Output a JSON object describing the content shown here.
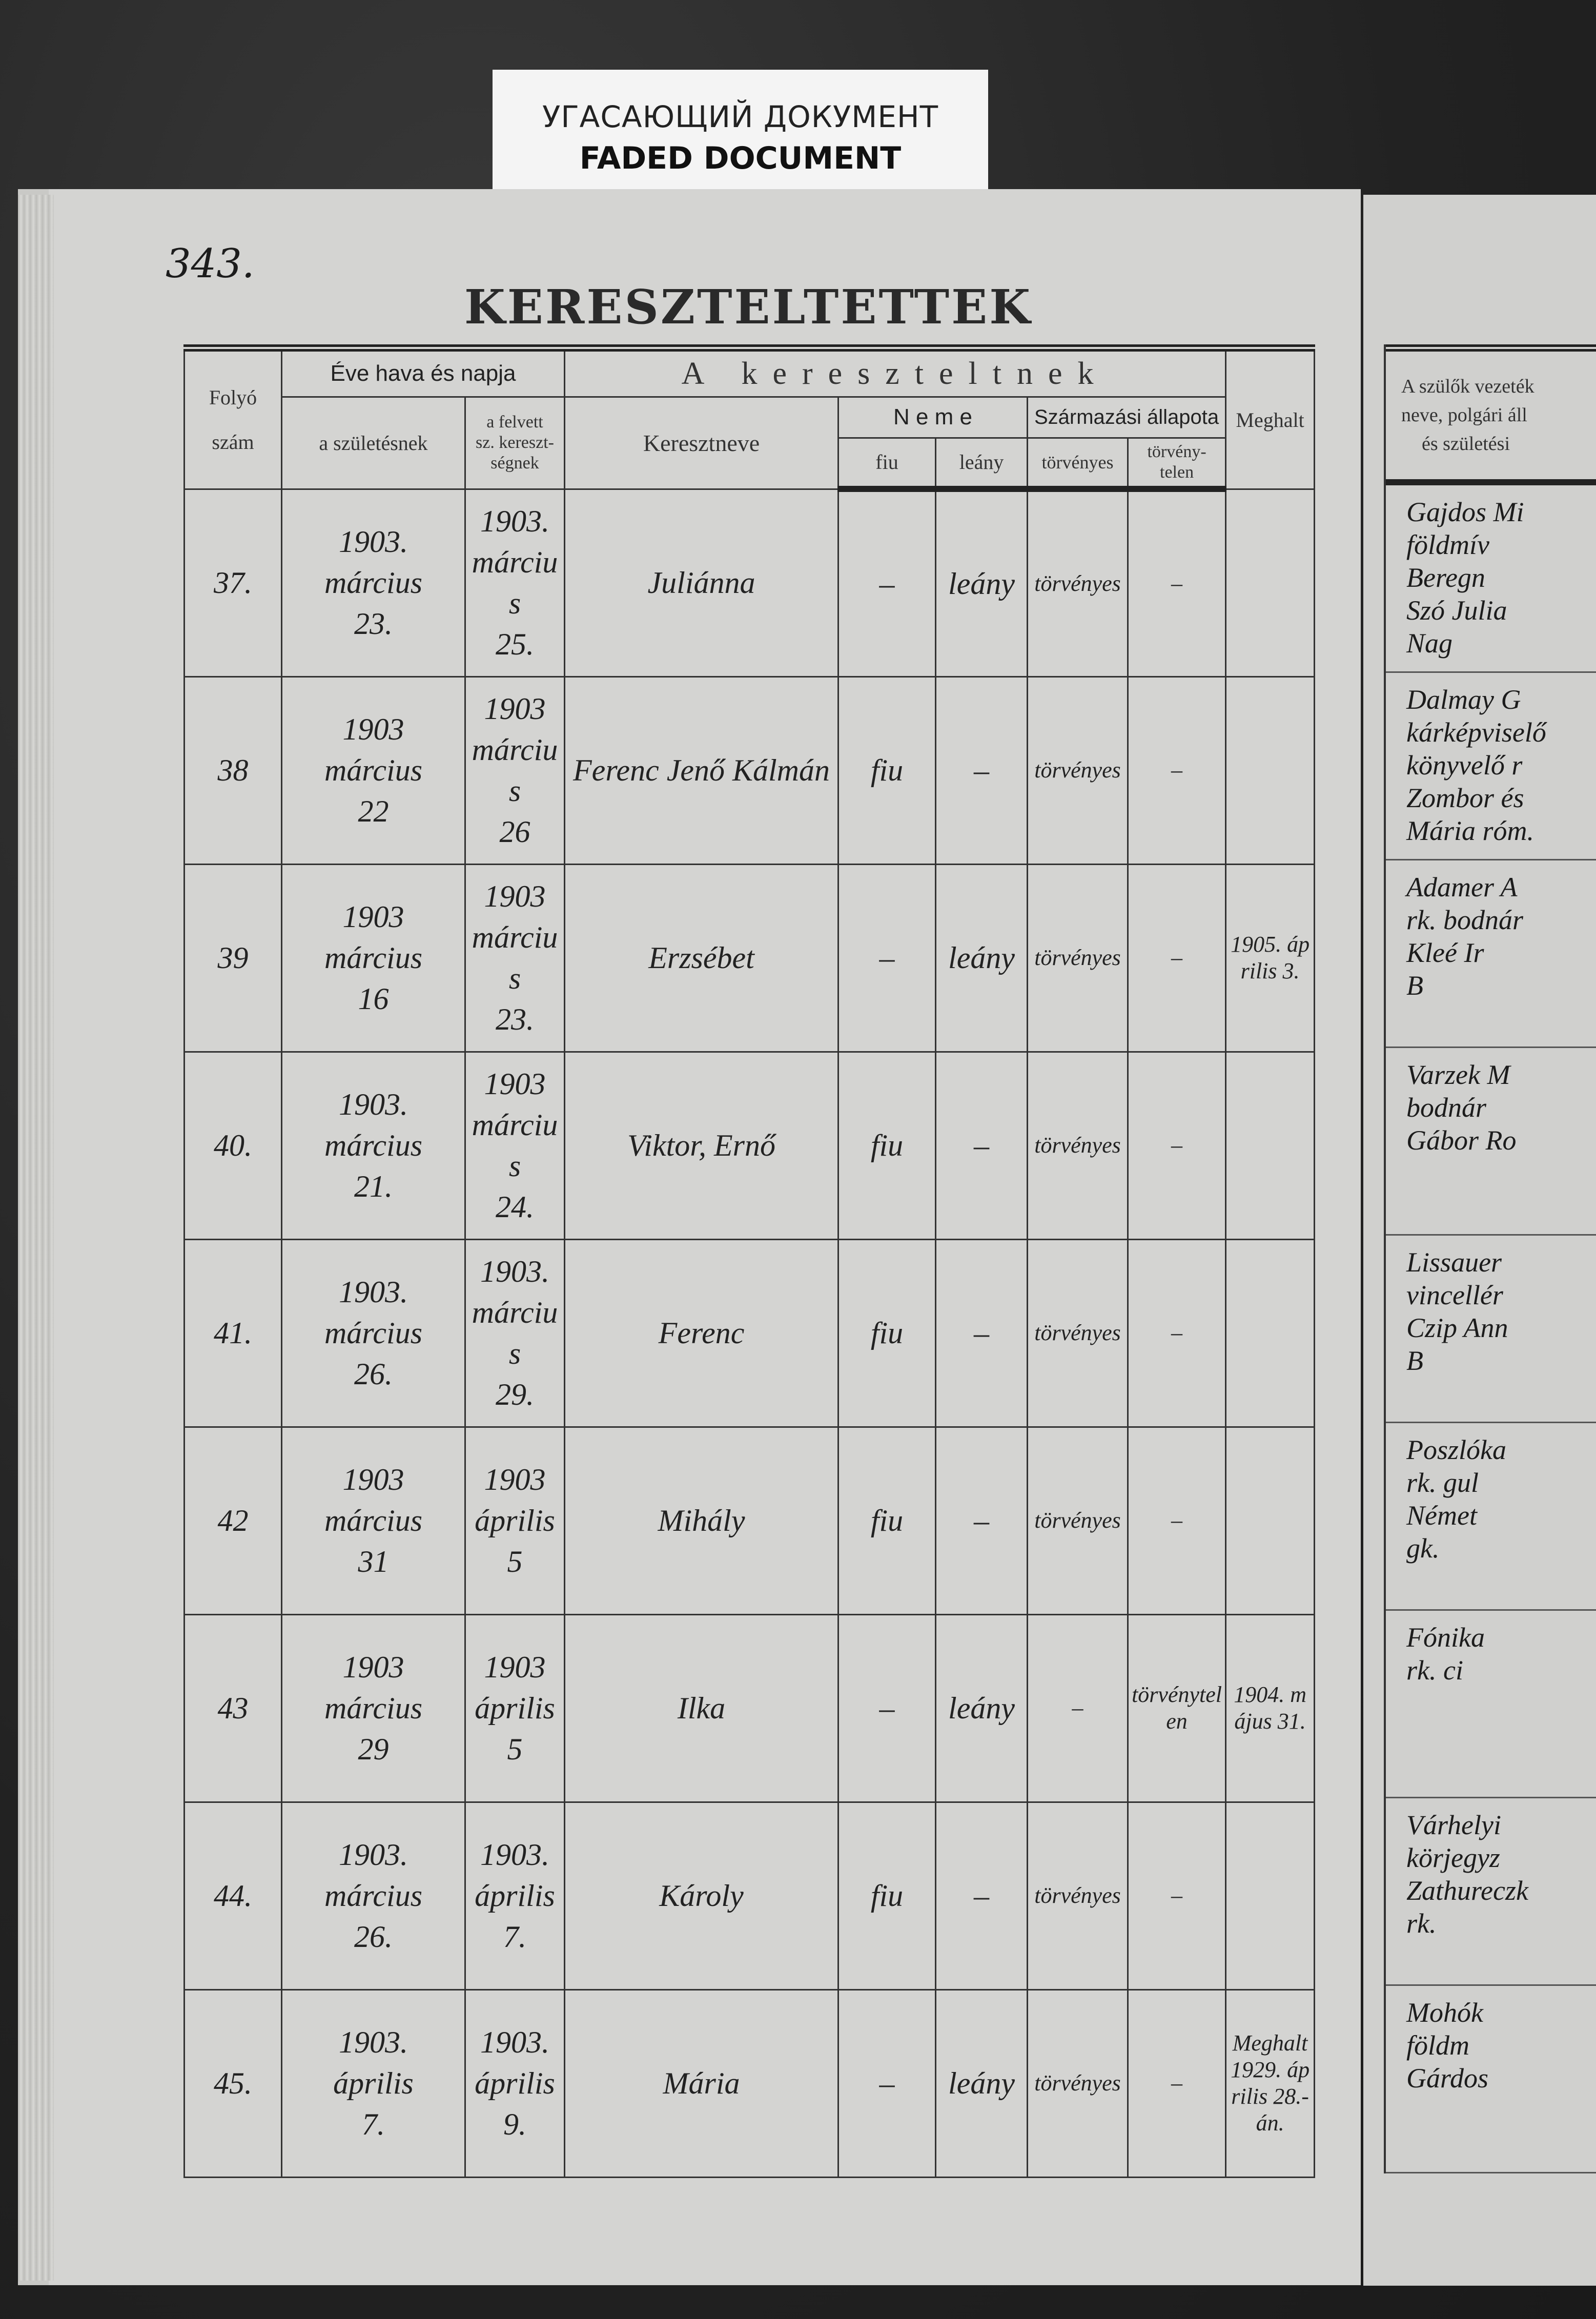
{
  "label": {
    "russian": "УГАСАЮЩИЙ ДОКУМЕНТ",
    "english": "FADED DOCUMENT"
  },
  "page_number": "343.",
  "title": "KERESZTELTETTEK",
  "headers": {
    "folyo_szam": [
      "Folyó",
      "szám"
    ],
    "eve_hava_napja": "Éve hava és napja",
    "szuletesnek": "a születésnek",
    "keresztsegnek": [
      "a felvett",
      "sz. kereszt-",
      "ségnek"
    ],
    "a_kereszteltnek": "A kereszteltnek",
    "keresztneve": "Keresztneve",
    "neme": "N e m e",
    "fiu": "fiu",
    "leany": "leány",
    "szarmazasi": "Származási állapota",
    "torvenyes": "törvényes",
    "torvenytelen": [
      "törvény-",
      "telen"
    ],
    "meghalt": "Meghalt"
  },
  "rows": [
    {
      "num": "37.",
      "birth": [
        "1903.",
        "március",
        "23."
      ],
      "baptism": [
        "1903.",
        "március",
        "25."
      ],
      "name": "Juliánna",
      "fiu": "–",
      "leany": "leány",
      "torvenyes": "törvényes",
      "torvenytelen": "–",
      "meghalt": ""
    },
    {
      "num": "38",
      "birth": [
        "1903",
        "március",
        "22"
      ],
      "baptism": [
        "1903",
        "március",
        "26"
      ],
      "name": "Ferenc Jenő Kálmán",
      "fiu": "fiu",
      "leany": "–",
      "torvenyes": "törvényes",
      "torvenytelen": "–",
      "meghalt": ""
    },
    {
      "num": "39",
      "birth": [
        "1903",
        "március",
        "16"
      ],
      "baptism": [
        "1903",
        "március",
        "23."
      ],
      "name": "Erzsébet",
      "fiu": "–",
      "leany": "leány",
      "torvenyes": "törvényes",
      "torvenytelen": "–",
      "meghalt": "1905. április 3."
    },
    {
      "num": "40.",
      "birth": [
        "1903.",
        "március",
        "21."
      ],
      "baptism": [
        "1903",
        "március",
        "24."
      ],
      "name": "Viktor, Ernő",
      "fiu": "fiu",
      "leany": "–",
      "torvenyes": "törvényes",
      "torvenytelen": "–",
      "meghalt": ""
    },
    {
      "num": "41.",
      "birth": [
        "1903.",
        "március",
        "26."
      ],
      "baptism": [
        "1903.",
        "március",
        "29."
      ],
      "name": "Ferenc",
      "fiu": "fiu",
      "leany": "–",
      "torvenyes": "törvényes",
      "torvenytelen": "–",
      "meghalt": ""
    },
    {
      "num": "42",
      "birth": [
        "1903",
        "március",
        "31"
      ],
      "baptism": [
        "1903",
        "április",
        "5"
      ],
      "name": "Mihály",
      "fiu": "fiu",
      "leany": "–",
      "torvenyes": "törvényes",
      "torvenytelen": "–",
      "meghalt": ""
    },
    {
      "num": "43",
      "birth": [
        "1903",
        "március",
        "29"
      ],
      "baptism": [
        "1903",
        "április",
        "5"
      ],
      "name": "Ilka",
      "fiu": "–",
      "leany": "leány",
      "torvenyes": "–",
      "torvenytelen": "törvénytelen",
      "meghalt": "1904. május 31."
    },
    {
      "num": "44.",
      "birth": [
        "1903.",
        "március",
        "26."
      ],
      "baptism": [
        "1903.",
        "április",
        "7."
      ],
      "name": "Károly",
      "fiu": "fiu",
      "leany": "–",
      "torvenyes": "törvényes",
      "torvenytelen": "–",
      "meghalt": ""
    },
    {
      "num": "45.",
      "birth": [
        "1903.",
        "április",
        "7."
      ],
      "baptism": [
        "1903.",
        "április",
        "9."
      ],
      "name": "Mária",
      "fiu": "–",
      "leany": "leány",
      "torvenyes": "törvényes",
      "torvenytelen": "–",
      "meghalt": "Meghalt 1929. április 28.-án."
    }
  ],
  "right_page": {
    "header": [
      "A szülők vezeték",
      "neve, polgári áll",
      "és születési"
    ],
    "rows": [
      [
        "Gajdos Mi",
        "földmív",
        "Beregn",
        "Szó Julia",
        "Nag"
      ],
      [
        "Dalmay G",
        "kárképviselő",
        "könyvelő r",
        "Zombor és",
        "Mária róm."
      ],
      [
        "Adamer A",
        "rk. bodnár",
        "Kleé Ir",
        "B"
      ],
      [
        "Varzek M",
        "bodnár",
        "Gábor Ro"
      ],
      [
        "Lissauer",
        "vincellér",
        "Czip Ann",
        "B"
      ],
      [
        "Poszlóka",
        "rk. gul",
        "Német",
        "gk."
      ],
      [
        "Fónika",
        "rk. ci"
      ],
      [
        "Várhelyi",
        "körjegyz",
        "Zathureczk",
        "rk."
      ],
      [
        "Mohók",
        "földm",
        "Gárdos"
      ]
    ]
  }
}
